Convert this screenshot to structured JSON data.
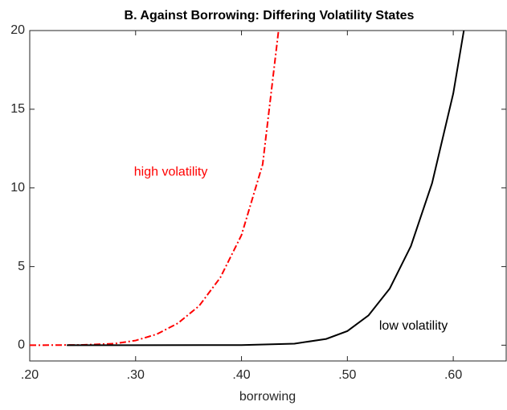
{
  "chart_data": {
    "type": "line",
    "title": "B. Against Borrowing: Differing Volatility States",
    "x_label": "borrowing",
    "xlim": [
      0.2,
      0.65
    ],
    "xticks": [
      {
        "value": 0.2,
        "label": ".20"
      },
      {
        "value": 0.3,
        "label": ".30"
      },
      {
        "value": 0.4,
        "label": ".40"
      },
      {
        "value": 0.5,
        "label": ".50"
      },
      {
        "value": 0.6,
        "label": ".60"
      }
    ],
    "ylim": [
      -1,
      20
    ],
    "yticks": [
      0,
      5,
      10,
      15,
      20
    ],
    "series": [
      {
        "name": "high volatility",
        "color": "#ff0000",
        "dash": "dashdot",
        "x": [
          0.2,
          0.25,
          0.28,
          0.3,
          0.32,
          0.34,
          0.36,
          0.38,
          0.4,
          0.42,
          0.435
        ],
        "values": [
          0,
          0.02,
          0.1,
          0.3,
          0.7,
          1.4,
          2.5,
          4.3,
          7.0,
          11.5,
          20
        ]
      },
      {
        "name": "low volatility",
        "color": "#000000",
        "dash": "solid",
        "x": [
          0.235,
          0.3,
          0.4,
          0.45,
          0.48,
          0.5,
          0.52,
          0.54,
          0.56,
          0.58,
          0.6,
          0.61
        ],
        "values": [
          0,
          0,
          0.01,
          0.1,
          0.4,
          0.9,
          1.9,
          3.6,
          6.3,
          10.3,
          16,
          20
        ]
      }
    ]
  }
}
